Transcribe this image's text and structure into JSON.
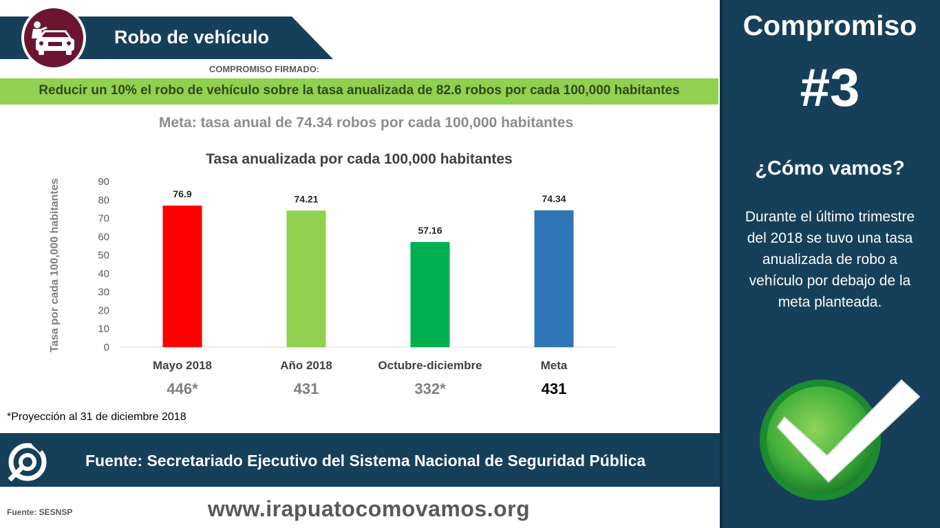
{
  "header": {
    "title": "Robo de vehículo",
    "icon": "car-thief-icon",
    "banner_color": "#163f5a",
    "icon_circle_color": "#6b1530"
  },
  "commitment": {
    "label": "COMPROMISO FIRMADO:",
    "text": "Reducir un 10% el robo de vehículo sobre la tasa anualizada de 82.6 robos por cada 100,000 habitantes",
    "bar_color": "#92d050"
  },
  "goal": "Meta: tasa anual de 74.34 robos por cada 100,000 habitantes",
  "chart_data": {
    "type": "bar",
    "title": "Tasa anualizada por cada 100,000 habitantes",
    "xlabel": "",
    "ylabel": "Tasa por cada 100,000 habitantes",
    "ylim": [
      0,
      90
    ],
    "yticks": [
      0,
      10,
      20,
      30,
      40,
      50,
      60,
      70,
      80,
      90
    ],
    "grid": false,
    "categories": [
      "Mayo 2018",
      "Año 2018",
      "Octubre-diciembre",
      "Meta"
    ],
    "values": [
      76.9,
      74.21,
      57.16,
      74.34
    ],
    "data_labels": [
      "76.9",
      "74.21",
      "57.16",
      "74.34"
    ],
    "colors": [
      "#ff0000",
      "#92d050",
      "#00b050",
      "#2e75b6"
    ],
    "counts": [
      "446*",
      "431",
      "332*",
      "431"
    ],
    "count_colors": [
      "#7f7f7f",
      "#7f7f7f",
      "#7f7f7f",
      "#000000"
    ]
  },
  "footnote": "*Proyección al 31 de diciembre 2018",
  "source": {
    "text": "Fuente: Secretariado Ejecutivo del Sistema Nacional de Seguridad Pública",
    "logo": "como-vamos-logo-icon",
    "short": "Fuente: SESNSP"
  },
  "website": "www.irapuatocomovamos.org",
  "panel": {
    "title": "Compromiso",
    "number": "#3",
    "question": "¿Cómo vamos?",
    "body": "Durante el último trimestre del 2018 se tuvo una tasa anualizada de robo a vehículo por debajo de la meta planteada.",
    "status_icon": "checkmark-icon",
    "background": "#163f5a"
  }
}
